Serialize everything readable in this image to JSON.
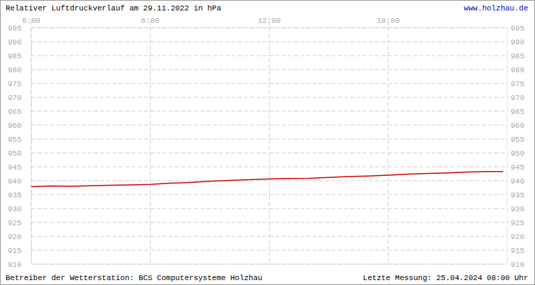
{
  "chart_data": {
    "type": "line",
    "title": "Relativer Luftdruckverlauf am 29.11.2022 in hPa",
    "annotations": [
      "www.holzhau.de",
      "Betreiber der Wetterstation: BCS Computersysteme Holzhau",
      "Letzte Messung: 25.04.2024 08:00 Uhr"
    ],
    "x": [
      0,
      1,
      2,
      3,
      4,
      5,
      6,
      7,
      8,
      9,
      10,
      11,
      12,
      13,
      14,
      15,
      16,
      17,
      18,
      19,
      20,
      21,
      22,
      23,
      23.8
    ],
    "series": [
      {
        "name": "Luftdruck",
        "color": "#cc0000",
        "values": [
          937.9,
          938.1,
          938.0,
          938.2,
          938.4,
          938.5,
          938.7,
          939.1,
          939.4,
          939.8,
          940.1,
          940.4,
          940.6,
          940.8,
          940.9,
          941.2,
          941.5,
          941.7,
          942.0,
          942.4,
          942.6,
          942.8,
          943.1,
          943.3,
          943.3
        ]
      }
    ],
    "xlim": [
      0,
      24
    ],
    "xticks": [
      {
        "value": 0,
        "label": "0:00"
      },
      {
        "value": 6,
        "label": "6:00"
      },
      {
        "value": 12,
        "label": "12:00"
      },
      {
        "value": 18,
        "label": "18:00"
      }
    ],
    "ylim": [
      910,
      995
    ],
    "yticks": [
      910,
      915,
      920,
      925,
      930,
      935,
      940,
      945,
      950,
      955,
      960,
      965,
      970,
      975,
      980,
      985,
      990,
      995
    ],
    "grid": true
  }
}
